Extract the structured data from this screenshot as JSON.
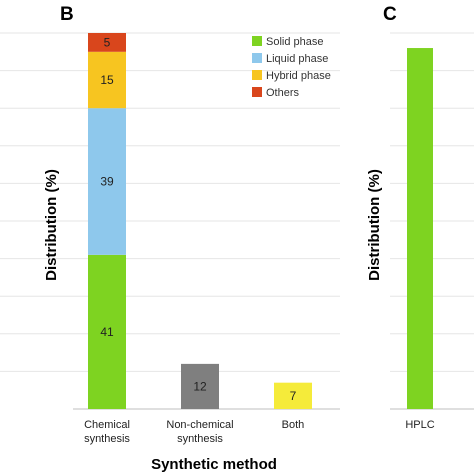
{
  "chart_data": [
    {
      "panel": "B",
      "type": "bar",
      "stacked_bar": {
        "category": "Chemical\nsynthesis",
        "segments": [
          {
            "name": "Solid phase",
            "value": 41,
            "color": "#7ed321"
          },
          {
            "name": "Liquid phase",
            "value": 39,
            "color": "#8ec8ec"
          },
          {
            "name": "Hybrid phase",
            "value": 15,
            "color": "#f7c520"
          },
          {
            "name": "Others",
            "value": 5,
            "color": "#d9461c"
          }
        ]
      },
      "bars": [
        {
          "category": "Non-chemical\nsynthesis",
          "value": 12,
          "color": "#7f7f7f"
        },
        {
          "category": "Both",
          "value": 7,
          "color": "#f5eb3a"
        }
      ],
      "xlabel": "Synthetic method",
      "ylabel": "Distribution (%)",
      "ylim": [
        0,
        100
      ],
      "grid": true,
      "legend": {
        "position": "top-right",
        "entries": [
          "Solid phase",
          "Liquid phase",
          "Hybrid phase",
          "Others"
        ]
      }
    },
    {
      "panel": "C",
      "type": "bar",
      "categories": [
        "HPLC"
      ],
      "values": [
        96
      ],
      "color": "#7ed321",
      "ylabel": "Distribution (%)",
      "ylim": [
        0,
        100
      ],
      "grid": true
    }
  ]
}
